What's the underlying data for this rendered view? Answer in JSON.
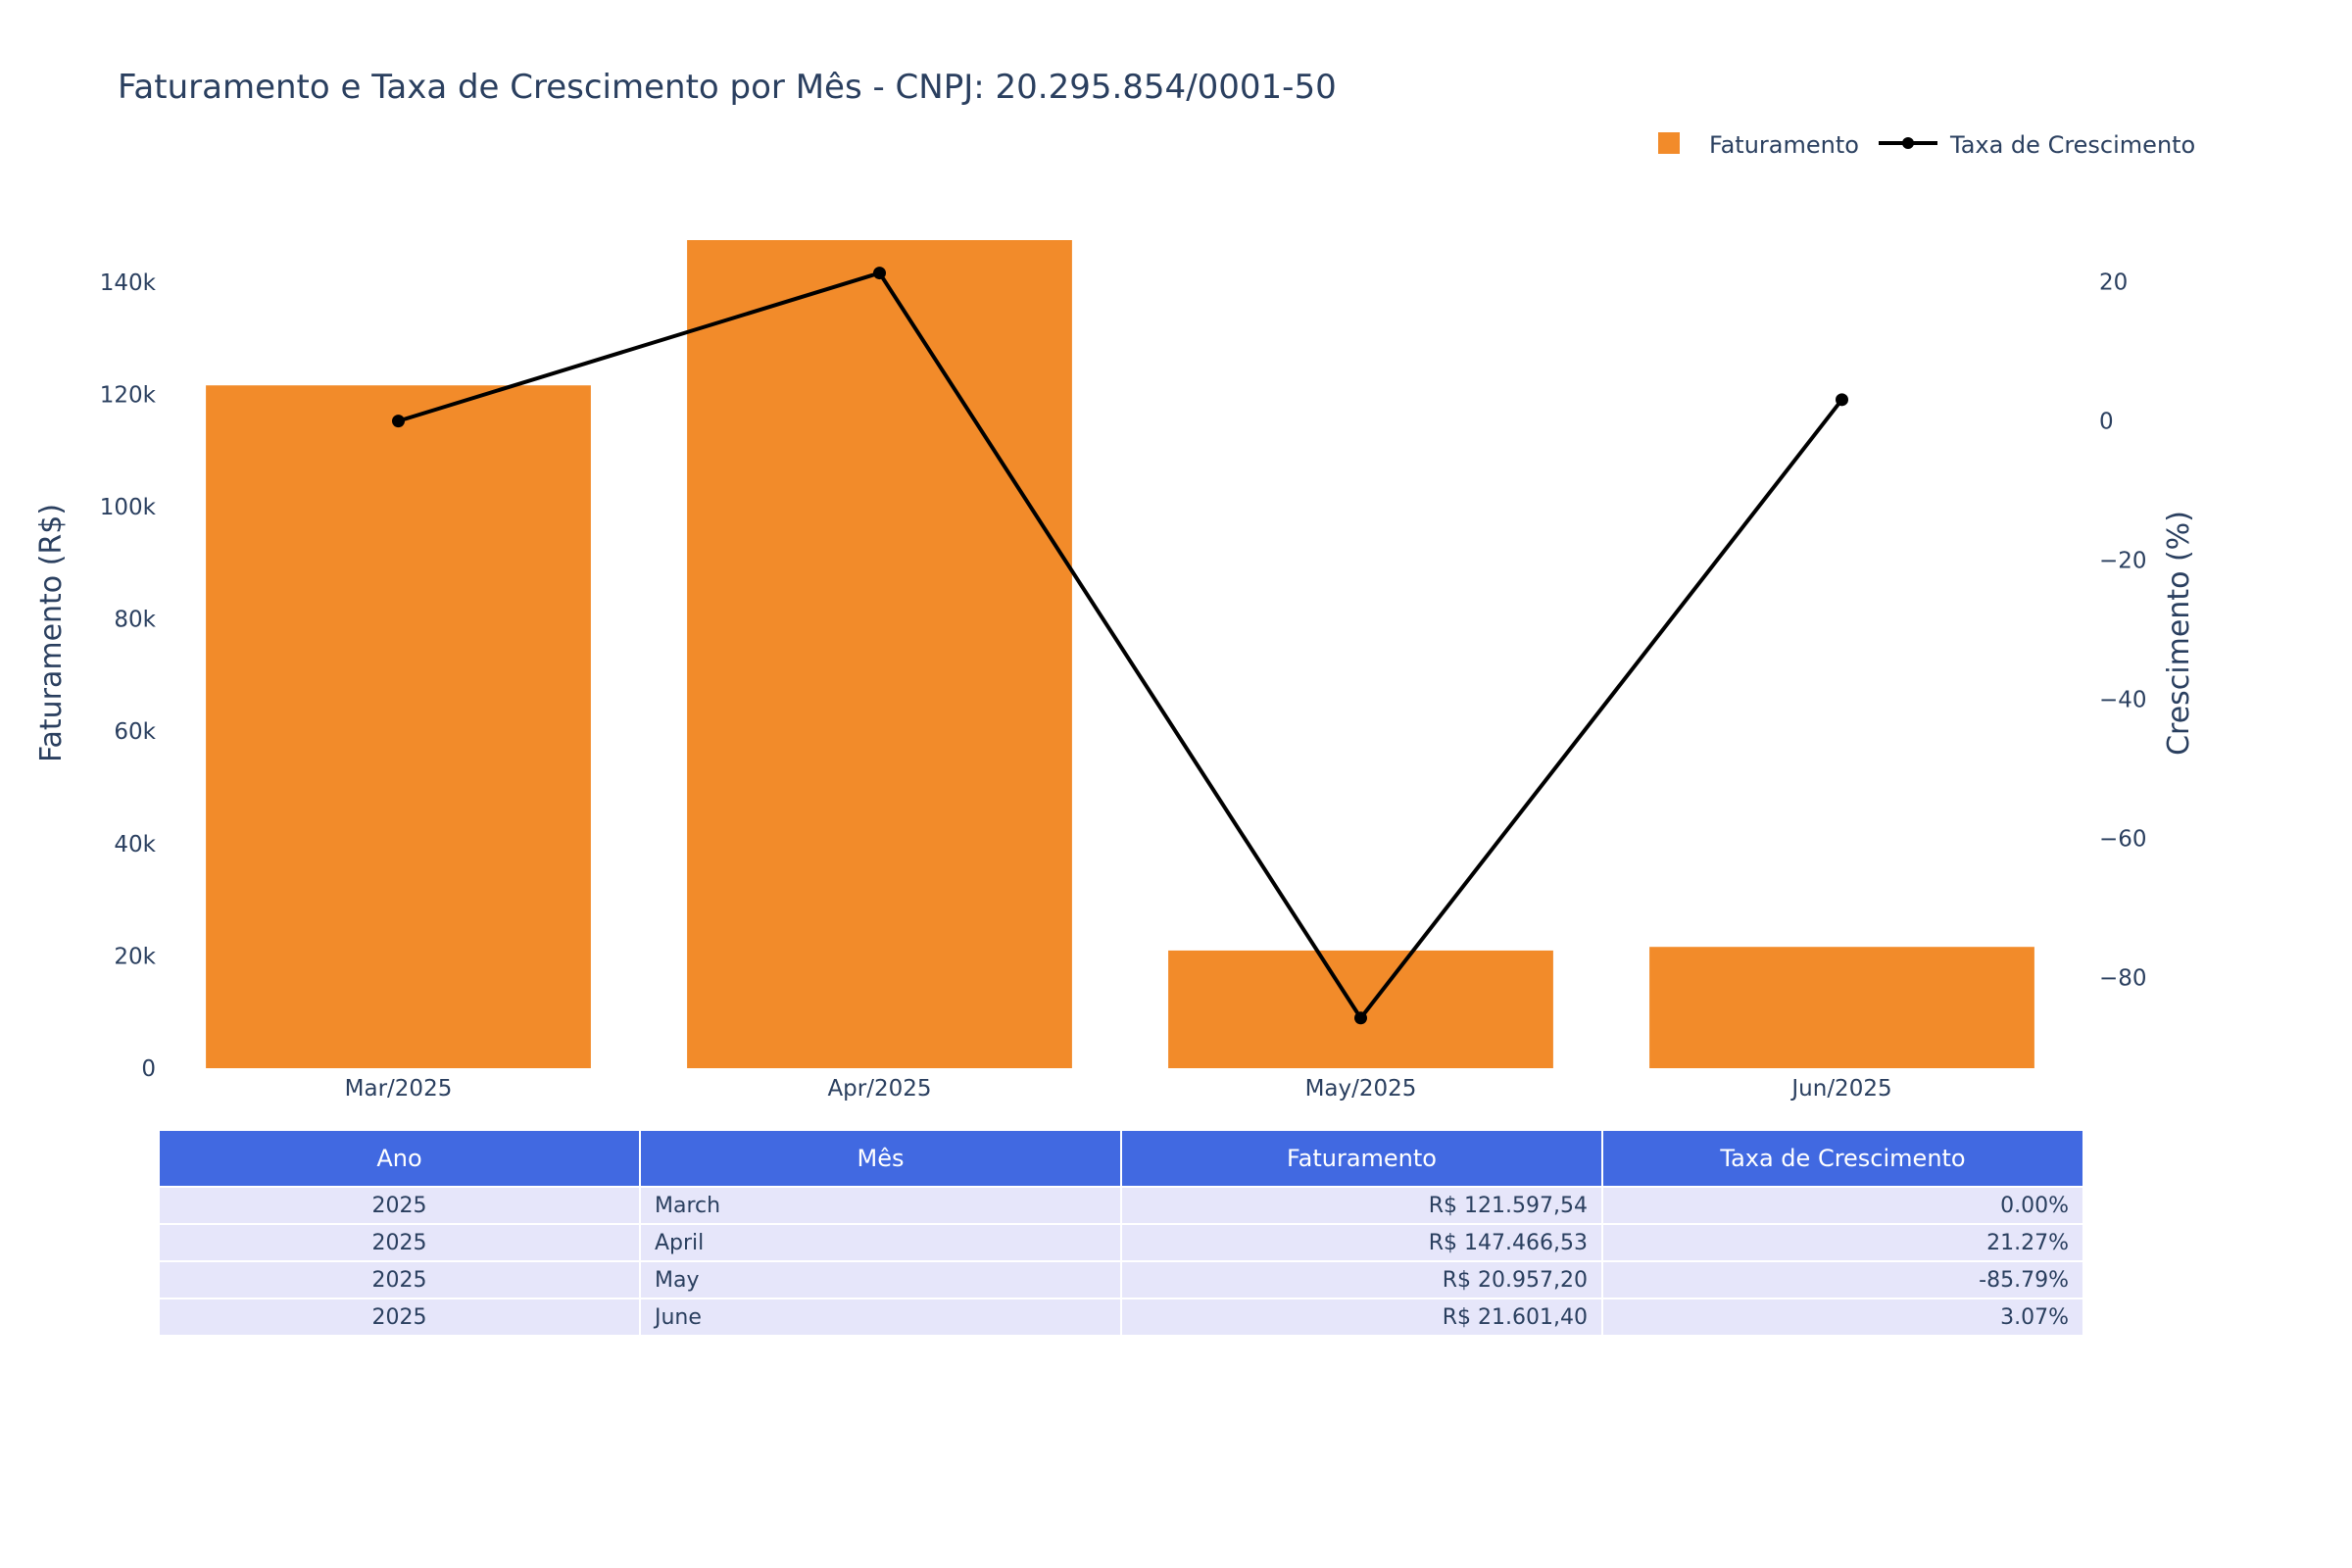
{
  "chart_data": {
    "type": "bar",
    "title": "Faturamento e Taxa de Crescimento por Mês - CNPJ: 20.295.854/0001-50",
    "categories": [
      "Mar/2025",
      "Apr/2025",
      "May/2025",
      "Jun/2025"
    ],
    "series": [
      {
        "name": "Faturamento",
        "type": "bar",
        "axis": "left",
        "color": "#f28b2a",
        "values": [
          121597.54,
          147466.53,
          20957.2,
          21601.4
        ]
      },
      {
        "name": "Taxa de Crescimento",
        "type": "line",
        "axis": "right",
        "color": "#000000",
        "values": [
          0.0,
          21.27,
          -85.79,
          3.07
        ]
      }
    ],
    "ylabel": "Faturamento (R$)",
    "y2label": "Crescimento (%)",
    "ylim": [
      0,
      147466.53
    ],
    "y2lim": [
      -93,
      26
    ],
    "yticks": [
      {
        "value": 0,
        "label": "0"
      },
      {
        "value": 20000,
        "label": "20k"
      },
      {
        "value": 40000,
        "label": "40k"
      },
      {
        "value": 60000,
        "label": "60k"
      },
      {
        "value": 80000,
        "label": "80k"
      },
      {
        "value": 100000,
        "label": "100k"
      },
      {
        "value": 120000,
        "label": "120k"
      },
      {
        "value": 140000,
        "label": "140k"
      }
    ],
    "y2ticks": [
      {
        "value": 20,
        "label": "20"
      },
      {
        "value": 0,
        "label": "0"
      },
      {
        "value": -20,
        "label": "−20"
      },
      {
        "value": -40,
        "label": "−40"
      },
      {
        "value": -60,
        "label": "−60"
      },
      {
        "value": -80,
        "label": "−80"
      }
    ],
    "grid": false,
    "legend_position": "top-right"
  },
  "table": {
    "headers": [
      "Ano",
      "Mês",
      "Faturamento",
      "Taxa de Crescimento"
    ],
    "rows": [
      [
        "2025",
        "March",
        "R$ 121.597,54",
        "0.00%"
      ],
      [
        "2025",
        "April",
        "R$ 147.466,53",
        "21.27%"
      ],
      [
        "2025",
        "May",
        "R$ 20.957,20",
        "-85.79%"
      ],
      [
        "2025",
        "June",
        "R$ 21.601,40",
        "3.07%"
      ]
    ]
  }
}
